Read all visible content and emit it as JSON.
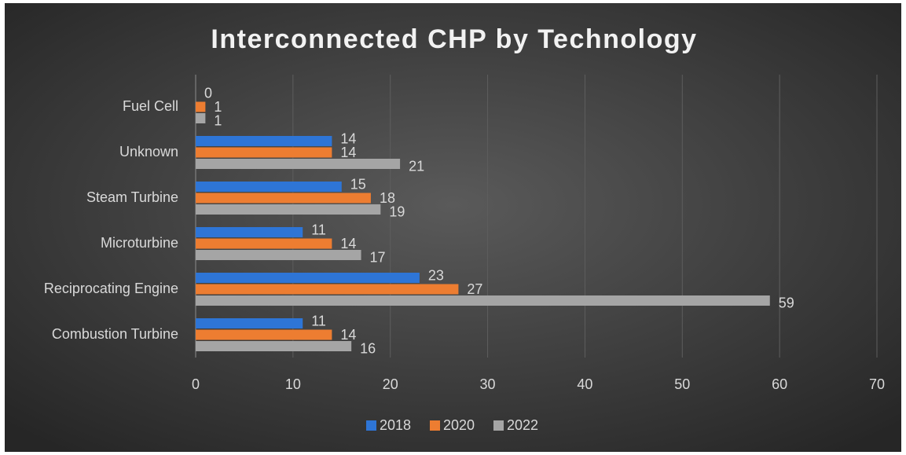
{
  "chart_data": {
    "type": "hbar",
    "title": "Interconnected CHP by Technology",
    "categories": [
      "Fuel Cell",
      "Unknown",
      "Steam Turbine",
      "Microturbine",
      "Reciprocating Engine",
      "Combustion Turbine"
    ],
    "series": [
      {
        "name": "2018",
        "color": "#2e75d6",
        "values": [
          0,
          14,
          15,
          11,
          23,
          11
        ]
      },
      {
        "name": "2020",
        "color": "#ed7d31",
        "values": [
          1,
          14,
          18,
          14,
          27,
          14
        ]
      },
      {
        "name": "2022",
        "color": "#a5a5a5",
        "values": [
          1,
          21,
          19,
          17,
          59,
          16
        ]
      }
    ],
    "xlim": [
      0,
      70
    ],
    "xticks": [
      0,
      10,
      20,
      30,
      40,
      50,
      60,
      70
    ],
    "grid": true,
    "legend": "bottom"
  }
}
